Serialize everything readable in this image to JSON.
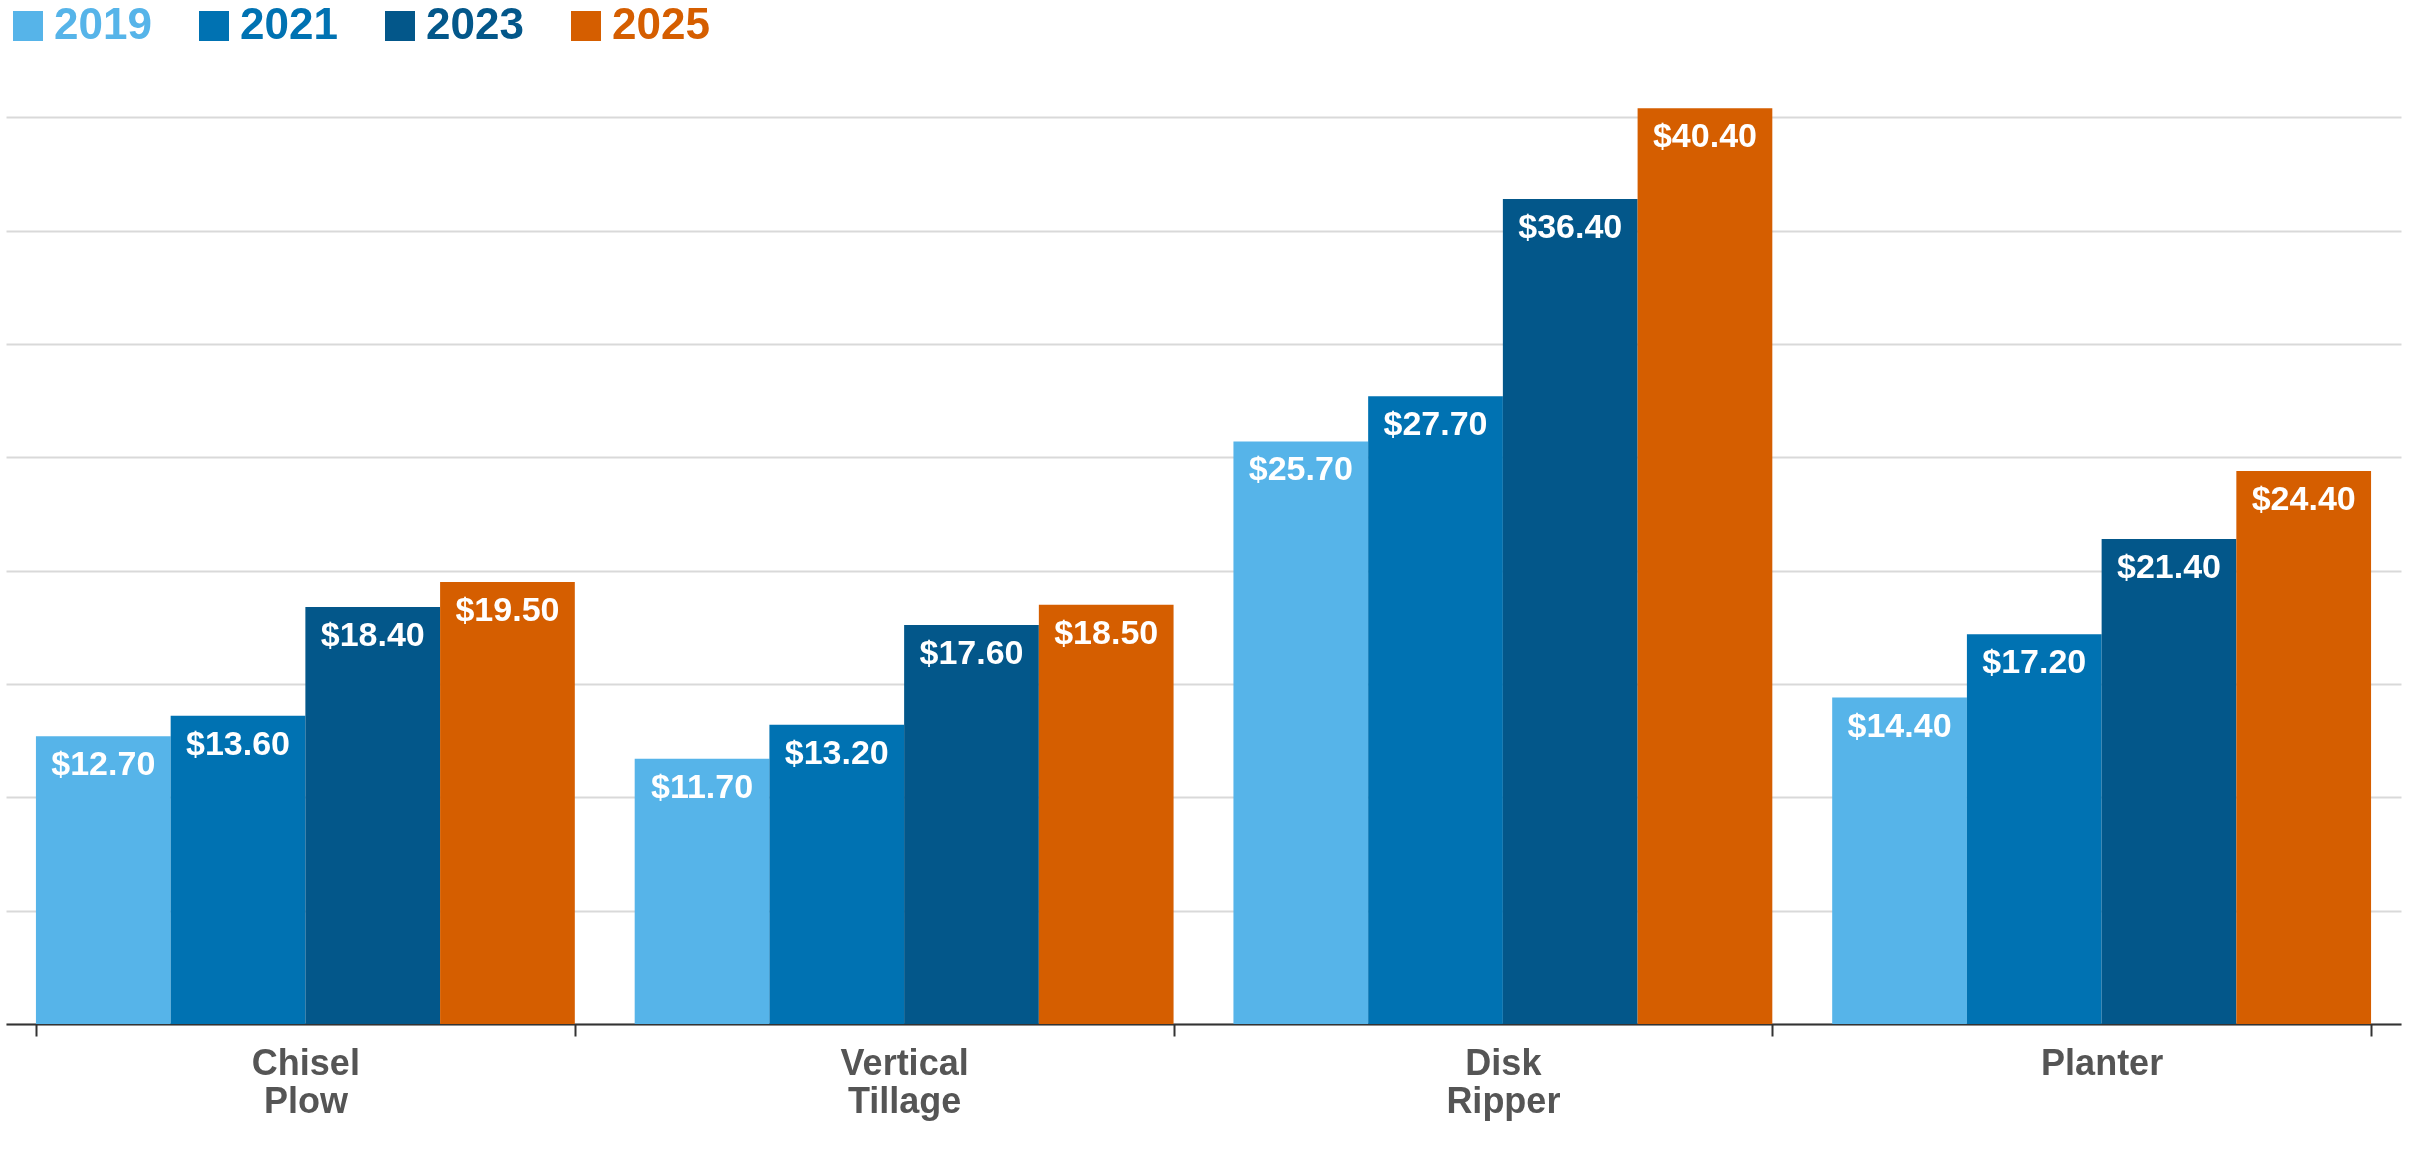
{
  "chart_data": {
    "type": "bar",
    "categories": [
      "Chisel Plow",
      "Vertical Tillage",
      "Disk Ripper",
      "Planter"
    ],
    "series": [
      {
        "name": "2019",
        "color": "#56b4e9",
        "values": [
          12.7,
          11.7,
          25.7,
          14.4
        ],
        "value_labels": [
          "$12.70",
          "$11.70",
          "$25.70",
          "$14.40"
        ]
      },
      {
        "name": "2021",
        "color": "#0072b2",
        "values": [
          13.6,
          13.2,
          27.7,
          17.2
        ],
        "value_labels": [
          "$13.60",
          "$13.20",
          "$27.70",
          "$17.20"
        ]
      },
      {
        "name": "2023",
        "color": "#03578a",
        "values": [
          18.4,
          17.6,
          36.4,
          21.4
        ],
        "value_labels": [
          "$18.40",
          "$17.60",
          "$36.40",
          "$21.40"
        ]
      },
      {
        "name": "2025",
        "color": "#d55e00",
        "values": [
          19.5,
          18.5,
          40.4,
          24.4
        ],
        "value_labels": [
          "$19.50",
          "$18.50",
          "$40.40",
          "$24.40"
        ]
      }
    ],
    "ylim": [
      0,
      45
    ],
    "yticks": [
      {
        "value": 0,
        "label": null
      },
      {
        "value": 5,
        "label": null
      },
      {
        "value": 10,
        "label": null
      },
      {
        "value": 15,
        "label": null
      },
      {
        "value": 20,
        "label": null
      },
      {
        "value": 25,
        "label": null
      },
      {
        "value": 30,
        "label": null
      },
      {
        "value": 35,
        "label": null
      },
      {
        "value": 40,
        "label": null
      }
    ],
    "grid": "y",
    "legend": "top left",
    "tick_labels": "x"
  }
}
